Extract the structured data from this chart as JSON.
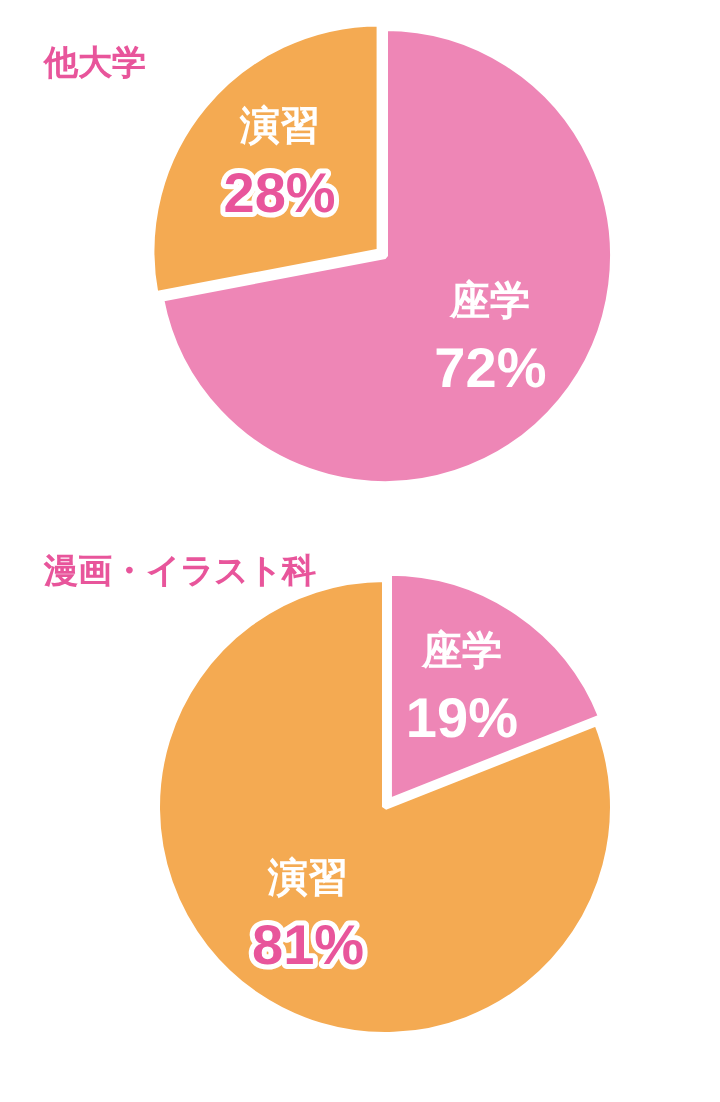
{
  "chart_data": [
    {
      "type": "pie",
      "title": "他大学",
      "categories": [
        "座学",
        "演習"
      ],
      "values": [
        72,
        28
      ],
      "colors": [
        "#ee86b6",
        "#f4aa52"
      ],
      "value_labels": [
        "72%",
        "28%"
      ],
      "legend": false
    },
    {
      "type": "pie",
      "title": "漫画・イラスト科",
      "categories": [
        "座学",
        "演習"
      ],
      "values": [
        19,
        81
      ],
      "colors": [
        "#ee86b6",
        "#f4aa52"
      ],
      "value_labels": [
        "19%",
        "81%"
      ],
      "legend": false
    }
  ]
}
